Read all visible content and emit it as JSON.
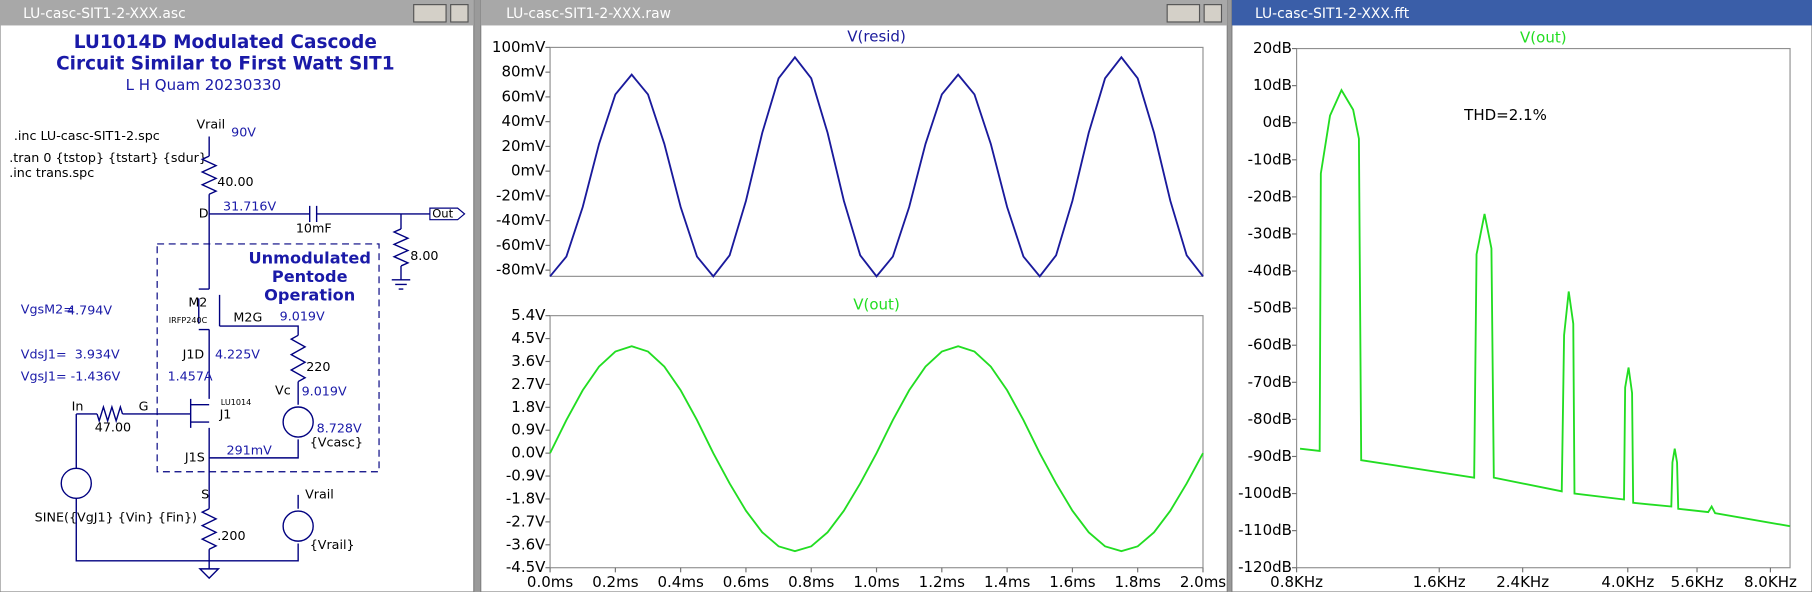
{
  "windows": [
    {
      "title": "LU-casc-SIT1-2-XXX.asc"
    },
    {
      "title": "LU-casc-SIT1-2-XXX.raw"
    },
    {
      "title": "LU-casc-SIT1-2-XXX.fft"
    }
  ],
  "schematic": {
    "title": [
      "LU1014D Modulated Cascode",
      "Circuit Similar to First Watt SIT1",
      "L H Quam 20230330"
    ],
    "directives": [
      ".inc LU-casc-SIT1-2.spc",
      ".tran 0 {tstop} {tstart} {sdur}",
      ".inc trans.spc"
    ],
    "box_label": [
      "Unmodulated",
      "Pentode",
      "Operation"
    ],
    "labels": [
      "Vrail",
      "90V",
      "40.00",
      "D",
      "31.716V",
      "10mF",
      "Out",
      "8.00",
      "M2",
      "IRFP240C",
      "M2G",
      "9.019V",
      "VgsM2=",
      "4.794V",
      "VdsJ1=  3.934V",
      "VgsJ1= -1.436V",
      "J1D",
      "4.225V",
      "220",
      "1.457A",
      "Vc",
      "9.019V",
      "In",
      "G",
      "47.00",
      "LU1014",
      "J1",
      "8.728V",
      "{Vcasc}",
      "J1S",
      "291mV",
      "S",
      "SINE({VgJ1} {Vin} {Fin})",
      "Vrail",
      "{Vrail}",
      ".200"
    ]
  },
  "chart_data": [
    {
      "type": "line",
      "title": "V(resid)",
      "color": "#1a1a9c",
      "x": [
        0,
        0.05,
        0.1,
        0.15,
        0.2,
        0.25,
        0.3,
        0.35,
        0.4,
        0.45,
        0.5,
        0.55,
        0.6,
        0.65,
        0.7,
        0.75,
        0.8,
        0.85,
        0.9,
        0.95,
        1,
        1.05,
        1.1,
        1.15,
        1.2,
        1.25,
        1.3,
        1.35,
        1.4,
        1.45,
        1.5,
        1.55,
        1.6,
        1.65,
        1.7,
        1.75,
        1.8,
        1.85,
        1.9,
        1.95,
        2
      ],
      "values": [
        -85,
        -69,
        -29,
        22,
        62,
        78,
        62,
        22,
        -29,
        -69,
        -85,
        -68,
        -24,
        31,
        75,
        92,
        75,
        31,
        -24,
        -68,
        -85,
        -69,
        -29,
        22,
        62,
        78,
        62,
        22,
        -29,
        -69,
        -85,
        -68,
        -24,
        31,
        75,
        92,
        75,
        31,
        -24,
        -68,
        -85
      ],
      "xlim": [
        0,
        2
      ],
      "ylim": [
        -85,
        100
      ],
      "yticks": [
        {
          "value": 100,
          "label": "100mV"
        },
        {
          "value": 80,
          "label": "80mV"
        },
        {
          "value": 60,
          "label": "60mV"
        },
        {
          "value": 40,
          "label": "40mV"
        },
        {
          "value": 20,
          "label": "20mV"
        },
        {
          "value": 0,
          "label": "0mV"
        },
        {
          "value": -20,
          "label": "-20mV"
        },
        {
          "value": -40,
          "label": "-40mV"
        },
        {
          "value": -60,
          "label": "-60mV"
        },
        {
          "value": -80,
          "label": "-80mV"
        }
      ]
    },
    {
      "type": "line",
      "title": "V(out)",
      "color": "#22dd22",
      "x": [
        0,
        0.05,
        0.1,
        0.15,
        0.2,
        0.25,
        0.3,
        0.35,
        0.4,
        0.45,
        0.5,
        0.55,
        0.6,
        0.65,
        0.7,
        0.75,
        0.8,
        0.85,
        0.9,
        0.95,
        1,
        1.05,
        1.1,
        1.15,
        1.2,
        1.25,
        1.3,
        1.35,
        1.4,
        1.45,
        1.5,
        1.55,
        1.6,
        1.65,
        1.7,
        1.75,
        1.8,
        1.85,
        1.9,
        1.95,
        2
      ],
      "values": [
        0,
        1.3,
        2.47,
        3.4,
        3.99,
        4.2,
        3.99,
        3.4,
        2.47,
        1.3,
        0,
        -1.19,
        -2.26,
        -3.11,
        -3.66,
        -3.85,
        -3.66,
        -3.11,
        -2.26,
        -1.19,
        0,
        1.3,
        2.47,
        3.4,
        3.99,
        4.2,
        3.99,
        3.4,
        2.47,
        1.3,
        0,
        -1.19,
        -2.26,
        -3.11,
        -3.66,
        -3.85,
        -3.66,
        -3.11,
        -2.26,
        -1.19,
        0
      ],
      "xlim": [
        0,
        2
      ],
      "ylim": [
        -4.5,
        5.4
      ],
      "xticks": [
        {
          "value": 0,
          "label": "0.0ms"
        },
        {
          "value": 0.2,
          "label": "0.2ms"
        },
        {
          "value": 0.4,
          "label": "0.4ms"
        },
        {
          "value": 0.6,
          "label": "0.6ms"
        },
        {
          "value": 0.8,
          "label": "0.8ms"
        },
        {
          "value": 1,
          "label": "1.0ms"
        },
        {
          "value": 1.2,
          "label": "1.2ms"
        },
        {
          "value": 1.4,
          "label": "1.4ms"
        },
        {
          "value": 1.6,
          "label": "1.6ms"
        },
        {
          "value": 1.8,
          "label": "1.8ms"
        },
        {
          "value": 2,
          "label": "2.0ms"
        }
      ],
      "yticks": [
        {
          "value": 5.4,
          "label": "5.4V"
        },
        {
          "value": 4.5,
          "label": "4.5V"
        },
        {
          "value": 3.6,
          "label": "3.6V"
        },
        {
          "value": 2.7,
          "label": "2.7V"
        },
        {
          "value": 1.8,
          "label": "1.8V"
        },
        {
          "value": 0.9,
          "label": "0.9V"
        },
        {
          "value": 0,
          "label": "0.0V"
        },
        {
          "value": -0.9,
          "label": "-0.9V"
        },
        {
          "value": -1.8,
          "label": "-1.8V"
        },
        {
          "value": -2.7,
          "label": "-2.7V"
        },
        {
          "value": -3.6,
          "label": "-3.6V"
        },
        {
          "value": -4.5,
          "label": "-4.5V"
        }
      ]
    },
    {
      "type": "line",
      "title": "V(out)",
      "color": "#22dd22",
      "xlog": true,
      "annotation": "THD=2.1%",
      "x": [
        0.8135,
        0.895,
        0.9,
        0.941,
        0.995,
        1.053,
        1.083,
        1.095,
        1.896,
        1.918,
        1.994,
        2.062,
        2.086,
        2.902,
        2.935,
        3.002,
        3.069,
        3.087,
        3.927,
        3.949,
        4.015,
        4.084,
        4.106,
        4.942,
        4.969,
        5.025,
        5.082,
        5.111,
        5.912,
        6.012,
        6.115,
        8.8
      ],
      "values": [
        -87.9,
        -88.5,
        -13.7,
        1.9,
        8.8,
        3.5,
        -4.3,
        -91,
        -95.7,
        -35.5,
        -24.6,
        -33.9,
        -95.7,
        -99.4,
        -57.3,
        -45.5,
        -54.2,
        -100,
        -101.6,
        -71.4,
        -66,
        -72.9,
        -102.5,
        -103.5,
        -91.6,
        -87.9,
        -91.6,
        -104.1,
        -105,
        -103.5,
        -105.3,
        -108.8
      ],
      "xlim": [
        0.8,
        8.8
      ],
      "ylim": [
        -120,
        20
      ],
      "xticks": [
        {
          "value": 0.8,
          "label": "0.8KHz"
        },
        {
          "value": 1.6,
          "label": "1.6KHz"
        },
        {
          "value": 2.4,
          "label": "2.4KHz"
        },
        {
          "value": 4.0,
          "label": "4.0KHz"
        },
        {
          "value": 5.6,
          "label": "5.6KHz"
        },
        {
          "value": 8.0,
          "label": "8.0KHz"
        }
      ],
      "yticks": [
        {
          "value": 20,
          "label": "20dB"
        },
        {
          "value": 10,
          "label": "10dB"
        },
        {
          "value": 0,
          "label": "0dB"
        },
        {
          "value": -10,
          "label": "-10dB"
        },
        {
          "value": -20,
          "label": "-20dB"
        },
        {
          "value": -30,
          "label": "-30dB"
        },
        {
          "value": -40,
          "label": "-40dB"
        },
        {
          "value": -50,
          "label": "-50dB"
        },
        {
          "value": -60,
          "label": "-60dB"
        },
        {
          "value": -70,
          "label": "-70dB"
        },
        {
          "value": -80,
          "label": "-80dB"
        },
        {
          "value": -90,
          "label": "-90dB"
        },
        {
          "value": -100,
          "label": "-100dB"
        },
        {
          "value": -110,
          "label": "-110dB"
        },
        {
          "value": -120,
          "label": "-120dB"
        }
      ]
    }
  ]
}
